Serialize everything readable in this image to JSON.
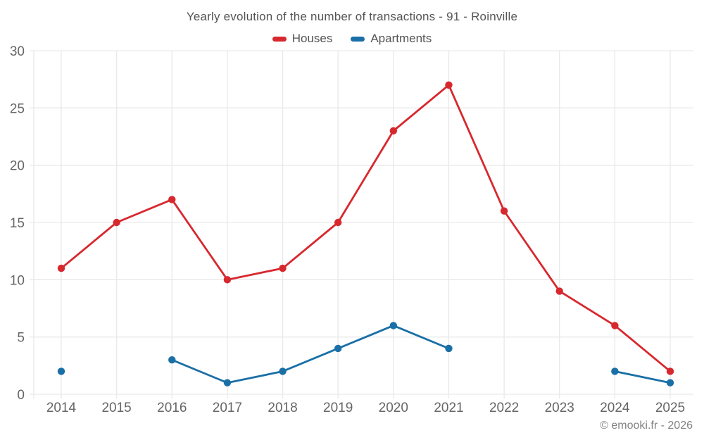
{
  "chart_data": {
    "type": "line",
    "title": "Yearly evolution of the number of transactions - 91 - Roinville",
    "categories": [
      "2014",
      "2015",
      "2016",
      "2017",
      "2018",
      "2019",
      "2020",
      "2021",
      "2022",
      "2023",
      "2024",
      "2025"
    ],
    "series": [
      {
        "name": "Houses",
        "color": "#d7282e",
        "values": [
          11,
          15,
          17,
          10,
          11,
          15,
          23,
          27,
          16,
          9,
          6,
          2
        ]
      },
      {
        "name": "Apartments",
        "color": "#1a6fa6",
        "values": [
          2,
          null,
          3,
          1,
          2,
          4,
          6,
          4,
          null,
          null,
          2,
          1
        ]
      }
    ],
    "xlabel": "",
    "ylabel": "",
    "ylim": [
      0,
      30
    ],
    "yticks": [
      0,
      5,
      10,
      15,
      20,
      25,
      30
    ],
    "grid": true,
    "legend_position": "top",
    "grid_color": "#e9e9e9",
    "tick_label_color": "#666666"
  },
  "footer": {
    "credit": "© emooki.fr - 2026"
  }
}
